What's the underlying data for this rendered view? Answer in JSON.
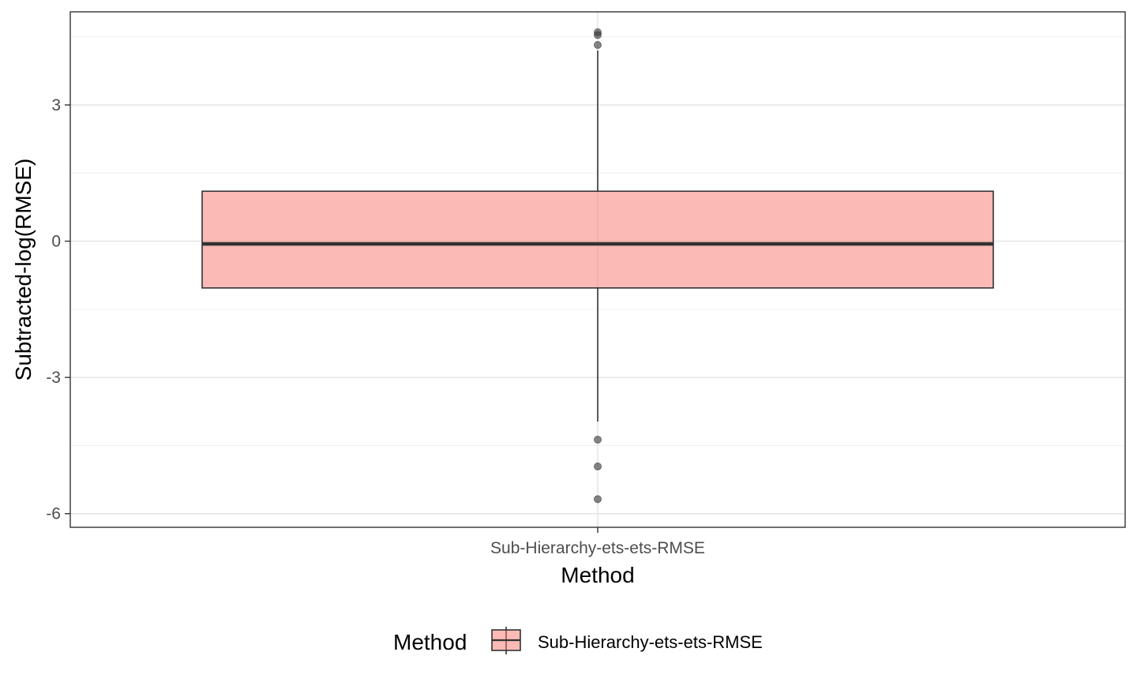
{
  "chart_data": {
    "type": "box",
    "categories": [
      "Sub-Hierarchy-ets-ets-RMSE"
    ],
    "series": [
      {
        "name": "Sub-Hierarchy-ets-ets-RMSE",
        "q1": -1.03,
        "median": -0.06,
        "q3": 1.1,
        "whisker_low": -3.97,
        "whisker_high": 4.2,
        "outliers": [
          4.6,
          4.54,
          4.32,
          -4.37,
          -4.96,
          -5.68
        ],
        "color": "#F8766D"
      }
    ],
    "xlabel": "Method",
    "ylabel": "Subtracted-log(RMSE)",
    "ylim": [
      -6.3,
      5.05
    ],
    "yticks": [
      -6,
      -3,
      0,
      3
    ],
    "ytick_labels": [
      "-6",
      "-3",
      "0",
      "3"
    ],
    "grid": true,
    "legend": {
      "title": "Method",
      "position": "bottom",
      "entries": [
        "Sub-Hierarchy-ets-ets-RMSE"
      ]
    }
  }
}
